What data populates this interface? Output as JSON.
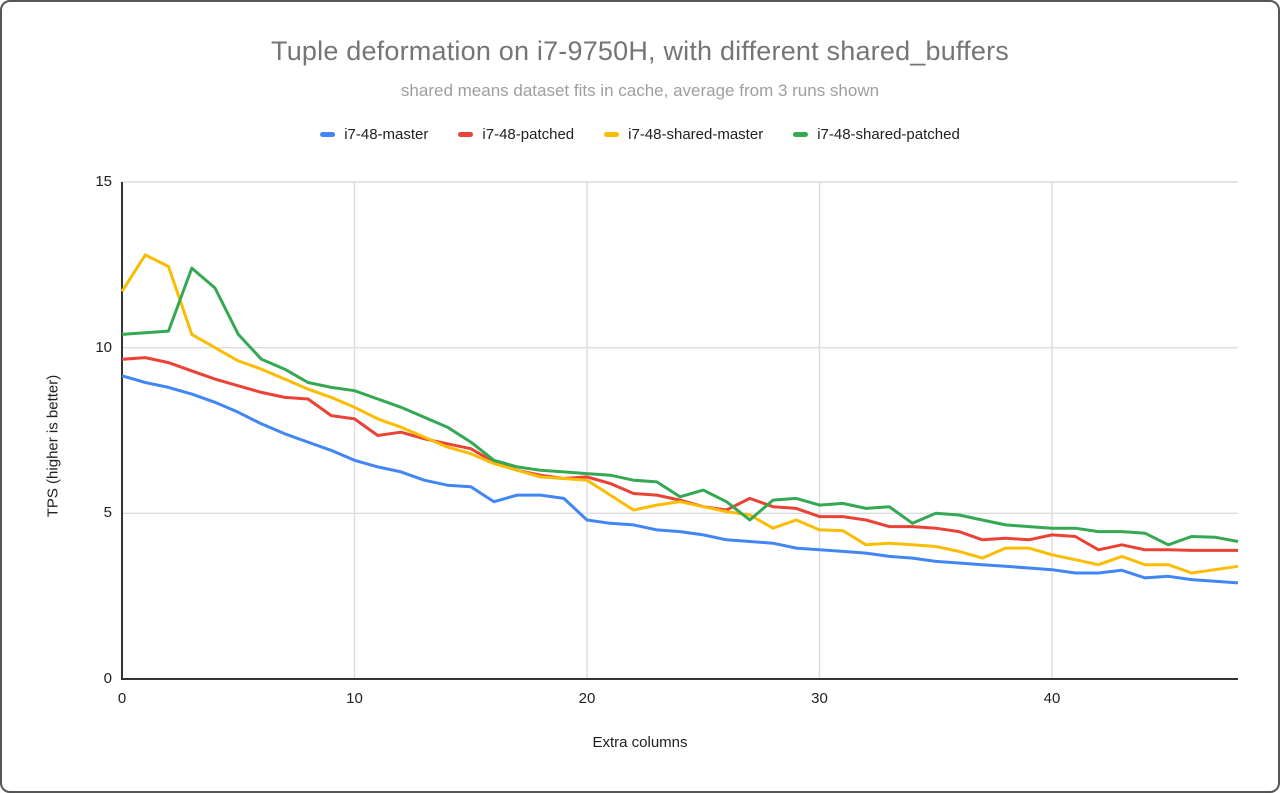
{
  "chart_data": {
    "type": "line",
    "title": "Tuple deformation on i7-9750H, with different shared_buffers",
    "subtitle": "shared means dataset fits in cache, average from 3 runs shown",
    "xlabel": "Extra columns",
    "ylabel": "TPS (higher is better)",
    "xlim": [
      0,
      48
    ],
    "ylim": [
      0,
      15
    ],
    "x_ticks": [
      0,
      10,
      20,
      30,
      40
    ],
    "y_ticks": [
      0,
      5,
      10,
      15
    ],
    "grid": true,
    "legend_position": "top",
    "x": [
      0,
      1,
      2,
      3,
      4,
      5,
      6,
      7,
      8,
      9,
      10,
      11,
      12,
      13,
      14,
      15,
      16,
      17,
      18,
      19,
      20,
      21,
      22,
      23,
      24,
      25,
      26,
      27,
      28,
      29,
      30,
      31,
      32,
      33,
      34,
      35,
      36,
      37,
      38,
      39,
      40,
      41,
      42,
      43,
      44,
      45,
      46,
      47,
      48
    ],
    "series": [
      {
        "name": "i7-48-master",
        "color": "#4285F4",
        "values": [
          9.15,
          8.95,
          8.8,
          8.6,
          8.35,
          8.05,
          7.7,
          7.4,
          7.15,
          6.9,
          6.6,
          6.4,
          6.25,
          6.0,
          5.85,
          5.8,
          5.35,
          5.55,
          5.55,
          5.45,
          4.8,
          4.7,
          4.65,
          4.5,
          4.45,
          4.35,
          4.2,
          4.15,
          4.1,
          3.95,
          3.9,
          3.85,
          3.8,
          3.7,
          3.65,
          3.55,
          3.5,
          3.45,
          3.4,
          3.35,
          3.3,
          3.2,
          3.2,
          3.28,
          3.05,
          3.1,
          3.0,
          2.95,
          2.9
        ]
      },
      {
        "name": "i7-48-patched",
        "color": "#EA4335",
        "values": [
          9.65,
          9.7,
          9.55,
          9.3,
          9.05,
          8.85,
          8.65,
          8.5,
          8.45,
          7.95,
          7.85,
          7.35,
          7.45,
          7.25,
          7.1,
          6.95,
          6.55,
          6.3,
          6.15,
          6.05,
          6.1,
          5.9,
          5.6,
          5.55,
          5.4,
          5.2,
          5.1,
          5.45,
          5.2,
          5.15,
          4.9,
          4.9,
          4.8,
          4.6,
          4.6,
          4.55,
          4.45,
          4.2,
          4.25,
          4.2,
          4.35,
          4.3,
          3.9,
          4.05,
          3.9,
          3.9,
          3.88,
          3.88,
          3.88
        ]
      },
      {
        "name": "i7-48-shared-master",
        "color": "#FBBC04",
        "values": [
          11.7,
          12.8,
          12.45,
          10.4,
          10.0,
          9.6,
          9.35,
          9.05,
          8.75,
          8.5,
          8.2,
          7.85,
          7.6,
          7.3,
          7.0,
          6.8,
          6.5,
          6.3,
          6.1,
          6.05,
          6.0,
          5.55,
          5.1,
          5.25,
          5.35,
          5.2,
          5.05,
          4.95,
          4.55,
          4.8,
          4.5,
          4.48,
          4.05,
          4.1,
          4.05,
          4.0,
          3.85,
          3.65,
          3.95,
          3.95,
          3.75,
          3.6,
          3.45,
          3.7,
          3.45,
          3.45,
          3.2,
          3.3,
          3.4
        ]
      },
      {
        "name": "i7-48-shared-patched",
        "color": "#34A853",
        "values": [
          10.4,
          10.45,
          10.5,
          12.4,
          11.8,
          10.4,
          9.65,
          9.35,
          8.95,
          8.8,
          8.7,
          8.45,
          8.2,
          7.9,
          7.6,
          7.15,
          6.6,
          6.4,
          6.3,
          6.25,
          6.2,
          6.15,
          6.0,
          5.95,
          5.5,
          5.7,
          5.35,
          4.8,
          5.4,
          5.45,
          5.25,
          5.3,
          5.15,
          5.2,
          4.7,
          5.0,
          4.95,
          4.8,
          4.65,
          4.6,
          4.55,
          4.55,
          4.45,
          4.45,
          4.4,
          4.05,
          4.3,
          4.28,
          4.15
        ]
      }
    ]
  },
  "colors": {
    "grid": "#dcdcdc",
    "axis": "#333333",
    "title": "#757575",
    "subtitle": "#9e9e9e",
    "tick_text": "#212121"
  }
}
